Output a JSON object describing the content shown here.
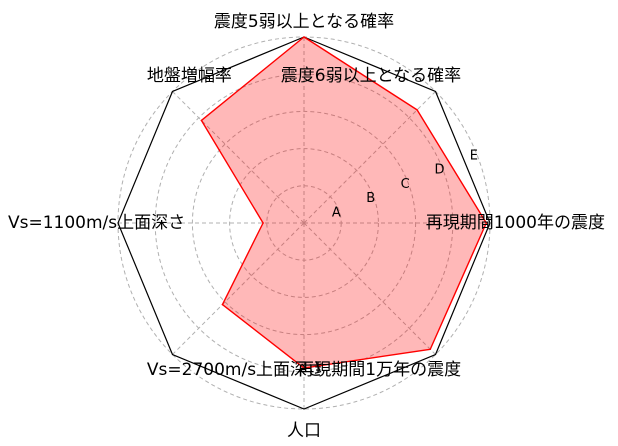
{
  "chart_data": {
    "type": "radar",
    "axes": [
      "震度5弱以上となる確率",
      "震度6弱以上となる確率",
      "再現期間1000年の震度",
      "再現期間1万年の震度",
      "人口",
      "Vs=2700m/s上面深さ",
      "Vs=1100m/s上面深さ",
      "地盤増幅率"
    ],
    "scale_labels": [
      "A",
      "B",
      "C",
      "D",
      "E"
    ],
    "rmax": 5,
    "grid": true,
    "series": [
      {
        "values": [
          5.0,
          4.3,
          4.9,
          4.8,
          3.9,
          3.1,
          1.1,
          3.9
        ],
        "line_color": "#ff0000",
        "fill_color": "#ff0000",
        "fill_opacity": 0.28
      }
    ]
  }
}
